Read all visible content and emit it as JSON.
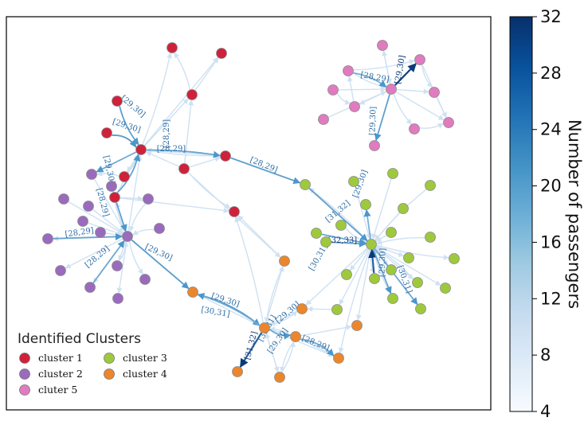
{
  "chart_data": {
    "type": "network",
    "title": "",
    "legend": {
      "title": "Identified Clusters",
      "placement": "bottom-left",
      "entries": [
        {
          "key": "c1",
          "label": "cluster 1",
          "color": "#d0213b"
        },
        {
          "key": "c2",
          "label": "cluster 2",
          "color": "#9a6bbd"
        },
        {
          "key": "c5",
          "label": "cluter 5",
          "color": "#e07bc0"
        },
        {
          "key": "c3",
          "label": "cluster 3",
          "color": "#9ec93d"
        },
        {
          "key": "c4",
          "label": "cluster 4",
          "color": "#ec862c"
        }
      ]
    },
    "colorbar": {
      "label": "Number of passengers",
      "min": 4,
      "max": 32,
      "ticks": [
        "4",
        "8",
        "12",
        "16",
        "20",
        "24",
        "28",
        "32"
      ],
      "colormap": "Blues"
    },
    "edge_labels": [
      "[29,30]",
      "[29,30]",
      "[29,30]",
      "[28,29]",
      "[28,29]",
      "[28,29]",
      "[28,29]",
      "[28,29]",
      "[29,30]",
      "[29,30]",
      "[30,31]",
      "[29,30]",
      "[30,31]",
      "[31,32]",
      "[29,30]",
      "[28,29]",
      "[28,29]",
      "[28,29]",
      "[29,30]",
      "[29,30]",
      "[31,32]",
      "[32,33]",
      "[30,31]",
      "[29,30]",
      "[30,31]",
      "[29,30]"
    ]
  }
}
